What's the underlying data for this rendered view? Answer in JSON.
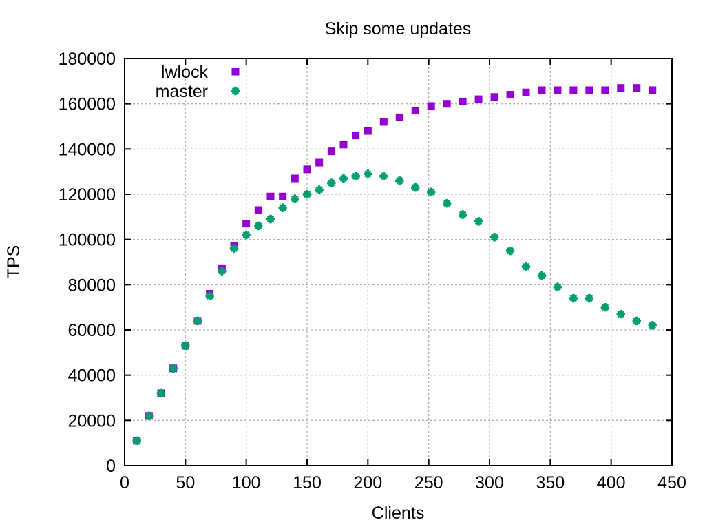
{
  "chart_data": {
    "type": "scatter",
    "title": "Skip some updates",
    "xlabel": "Clients",
    "ylabel": "TPS",
    "xlim": [
      0,
      450
    ],
    "ylim": [
      0,
      180000
    ],
    "x_ticks": [
      0,
      50,
      100,
      150,
      200,
      250,
      300,
      350,
      400,
      450
    ],
    "y_ticks": [
      0,
      20000,
      40000,
      60000,
      80000,
      100000,
      120000,
      140000,
      160000,
      180000
    ],
    "grid": true,
    "legend_position": "top-left-inside",
    "x": [
      10,
      20,
      30,
      40,
      50,
      60,
      70,
      80,
      90,
      100,
      110,
      120,
      130,
      140,
      150,
      160,
      170,
      180,
      190,
      200,
      213,
      226,
      239,
      252,
      265,
      278,
      291,
      304,
      317,
      330,
      343,
      356,
      369,
      382,
      395,
      408,
      421,
      434
    ],
    "series": [
      {
        "name": "lwlock",
        "marker": "filled-square",
        "color": "#9400d3",
        "values": [
          11000,
          22000,
          32000,
          43000,
          53000,
          64000,
          76000,
          87000,
          97000,
          107000,
          113000,
          119000,
          119000,
          127000,
          131000,
          134000,
          139000,
          142000,
          146000,
          148000,
          152000,
          154000,
          157000,
          159000,
          160000,
          161000,
          162000,
          163000,
          164000,
          165000,
          166000,
          166000,
          166000,
          166000,
          166000,
          167000,
          167000,
          166000
        ]
      },
      {
        "name": "master",
        "marker": "asterisk",
        "color": "#009e73",
        "values": [
          11000,
          22000,
          32000,
          43000,
          53000,
          64000,
          75000,
          86000,
          96000,
          102000,
          106000,
          109000,
          114000,
          118000,
          120000,
          122000,
          125000,
          127000,
          128000,
          129000,
          128000,
          126000,
          123000,
          121000,
          116000,
          111000,
          108000,
          101000,
          95000,
          88000,
          84000,
          79000,
          74000,
          74000,
          70000,
          67000,
          64000,
          62000
        ]
      }
    ]
  },
  "colors": {
    "background": "#ffffff",
    "border": "#000000",
    "grid": "#b3b3b3",
    "text": "#000000"
  }
}
